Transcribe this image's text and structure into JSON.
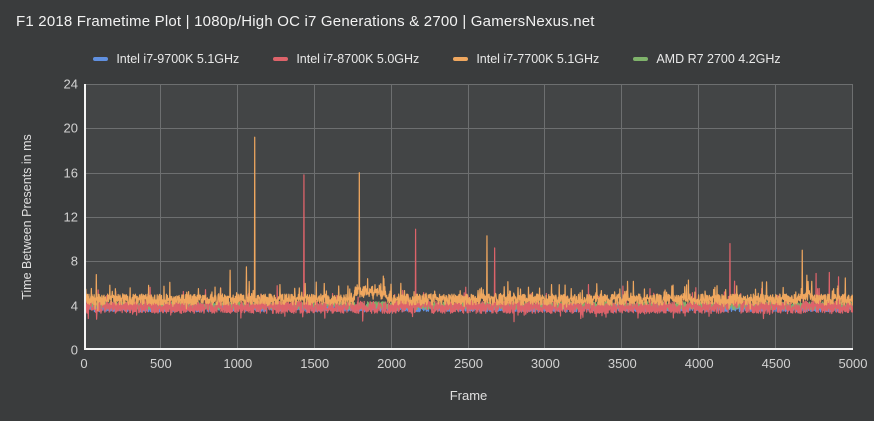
{
  "title": "F1 2018 Frametime Plot | 1080p/High OC i7 Generations & 2700 | GamersNexus.net",
  "colors": {
    "page_background": "#3a3c3d",
    "plot_background": "#434546",
    "grid": "#6d6f70",
    "axis_spine": "#f4f4f4",
    "title_text": "#f2f2f2",
    "tick_text": "#d2d2d2",
    "blue": "#6090e0",
    "red": "#dd636a",
    "orange": "#efa75f",
    "green": "#7fb36b"
  },
  "legend": {
    "items": [
      {
        "label": "Intel i7-9700K 5.1GHz",
        "color": "#6090e0"
      },
      {
        "label": "Intel i7-8700K 5.0GHz",
        "color": "#dd636a"
      },
      {
        "label": "Intel i7-7700K 5.1GHz",
        "color": "#efa75f"
      },
      {
        "label": "AMD R7 2700 4.2GHz",
        "color": "#7fb36b"
      }
    ]
  },
  "chart_data": {
    "type": "line",
    "title": "F1 2018 Frametime Plot | 1080p/High OC i7 Generations & 2700 | GamersNexus.net",
    "xlabel": "Frame",
    "ylabel": "Time Between Presents in ms",
    "xlim": [
      0,
      5000
    ],
    "ylim": [
      0,
      24
    ],
    "xticks": [
      0,
      500,
      1000,
      1500,
      2000,
      2500,
      3000,
      3500,
      4000,
      4500,
      5000
    ],
    "yticks": [
      0,
      4,
      8,
      12,
      16,
      20,
      24
    ],
    "grid": true,
    "legend_position": "top",
    "series": [
      {
        "name": "Intel i7-9700K 5.1GHz",
        "color": "#6090e0",
        "baseline_ms": 3.8,
        "noise_ms": 0.35,
        "jitter_prob": 0.0,
        "jitter_amp": 0.0,
        "down_jitter_prob": 0.0,
        "down_jitter_amp": 0.0,
        "bumps": [],
        "spikes": [],
        "note": "occluded behind 8700K/7700K traces in the screenshot"
      },
      {
        "name": "AMD R7 2700 4.2GHz",
        "color": "#7fb36b",
        "baseline_ms": 4.0,
        "noise_ms": 0.35,
        "jitter_prob": 0.0,
        "jitter_amp": 0.0,
        "down_jitter_prob": 0.0,
        "down_jitter_amp": 0.0,
        "bumps": [],
        "spikes": [],
        "note": "occluded behind 8700K/7700K traces in the screenshot"
      },
      {
        "name": "Intel i7-8700K 5.0GHz",
        "color": "#dd636a",
        "baseline_ms": 3.85,
        "noise_ms": 0.55,
        "jitter_prob": 0.05,
        "jitter_amp": 1.5,
        "down_jitter_prob": 0.04,
        "down_jitter_amp": 0.8,
        "bumps": [
          [
            4190,
            4270,
            0.6
          ],
          [
            2160,
            2250,
            0.6
          ]
        ],
        "spikes": [
          [
            1255,
            5.8
          ],
          [
            1430,
            15.8
          ],
          [
            2155,
            10.9
          ],
          [
            2670,
            9.2
          ],
          [
            3280,
            5.9
          ],
          [
            4200,
            9.6
          ],
          [
            4230,
            6.2
          ],
          [
            4760,
            6.9
          ],
          [
            4845,
            7.0
          ],
          [
            4905,
            6.6
          ]
        ]
      },
      {
        "name": "Intel i7-7700K 5.1GHz",
        "color": "#efa75f",
        "baseline_ms": 4.55,
        "noise_ms": 0.5,
        "jitter_prob": 0.07,
        "jitter_amp": 1.4,
        "down_jitter_prob": 0.02,
        "down_jitter_amp": 0.6,
        "bumps": [
          [
            1760,
            1960,
            0.9
          ],
          [
            4660,
            4730,
            0.6
          ]
        ],
        "spikes": [
          [
            80,
            6.8
          ],
          [
            950,
            7.2
          ],
          [
            1055,
            7.5
          ],
          [
            1110,
            19.2
          ],
          [
            1790,
            16.0
          ],
          [
            2620,
            10.3
          ],
          [
            4670,
            9.0
          ],
          [
            4950,
            6.5
          ]
        ]
      }
    ]
  }
}
